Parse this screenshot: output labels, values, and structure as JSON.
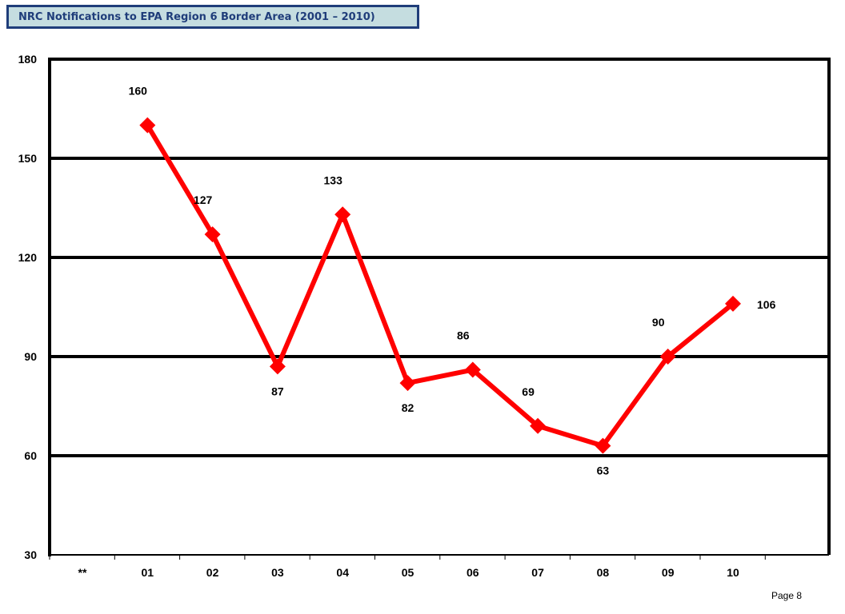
{
  "header": {
    "title": "NRC Notifications to EPA Region 6 Border Area (2001 – 2010)"
  },
  "footer": {
    "page_label": "Page 8"
  },
  "chart_data": {
    "type": "line",
    "title": "NRC Notifications to EPA Region 6 Border Area (2001 – 2010)",
    "categories": [
      "**",
      "01",
      "02",
      "03",
      "04",
      "05",
      "06",
      "07",
      "08",
      "09",
      "10"
    ],
    "series": [
      {
        "name": "",
        "values": [
          null,
          160,
          127,
          87,
          133,
          82,
          86,
          69,
          63,
          90,
          106
        ]
      }
    ],
    "ylim": [
      30,
      180
    ],
    "yticks": [
      30,
      60,
      90,
      120,
      150,
      180
    ],
    "xlabel": "",
    "ylabel": "",
    "grid": true,
    "line_color": "#ff0000",
    "marker": "diamond",
    "data_label_positions": [
      "",
      "above",
      "above",
      "below",
      "above",
      "below",
      "above",
      "above",
      "below",
      "above",
      "right"
    ]
  }
}
